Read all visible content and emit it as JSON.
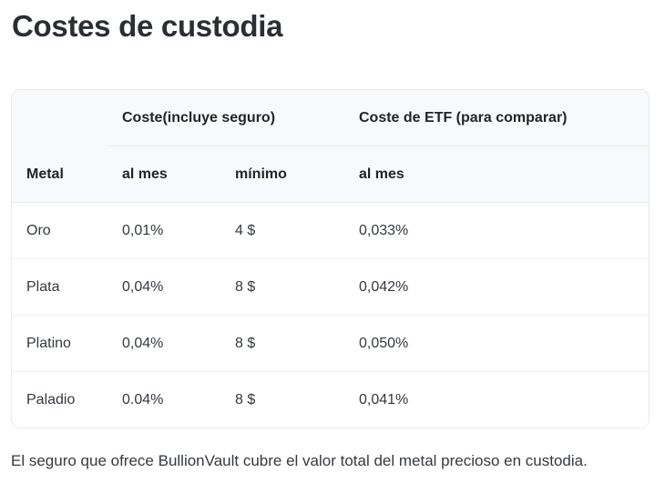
{
  "page": {
    "title": "Costes de custodia",
    "footer_note": "El seguro que ofrece BullionVault cubre el valor total del metal precioso en custodia."
  },
  "table": {
    "group_headers": {
      "cost_with_insurance": "Coste(incluye seguro)",
      "etf_cost_comparison": "Coste de ETF (para comparar)"
    },
    "column_headers": {
      "metal": "Metal",
      "per_month": "al mes",
      "minimum": "mínimo",
      "etf_per_month": "al mes"
    },
    "rows": [
      {
        "metal": "Oro",
        "per_month": "0,01%",
        "minimum": "4 $",
        "etf_per_month": "0,033%"
      },
      {
        "metal": "Plata",
        "per_month": "0,04%",
        "minimum": "8 $",
        "etf_per_month": "0,042%"
      },
      {
        "metal": "Platino",
        "per_month": "0,04%",
        "minimum": "8 $",
        "etf_per_month": "0,050%"
      },
      {
        "metal": "Paladio",
        "per_month": "0.04%",
        "minimum": "8 $",
        "etf_per_month": "0,041%"
      }
    ],
    "colors": {
      "header_background": "#f8f9fa",
      "row_background": "#ffffff",
      "header_border": "#e7eaed",
      "row_border": "#eef0f2",
      "outer_border": "#e7e9ec",
      "heading_text": "#212529",
      "body_text": "#33383d",
      "title_text": "#2b2f33"
    }
  }
}
